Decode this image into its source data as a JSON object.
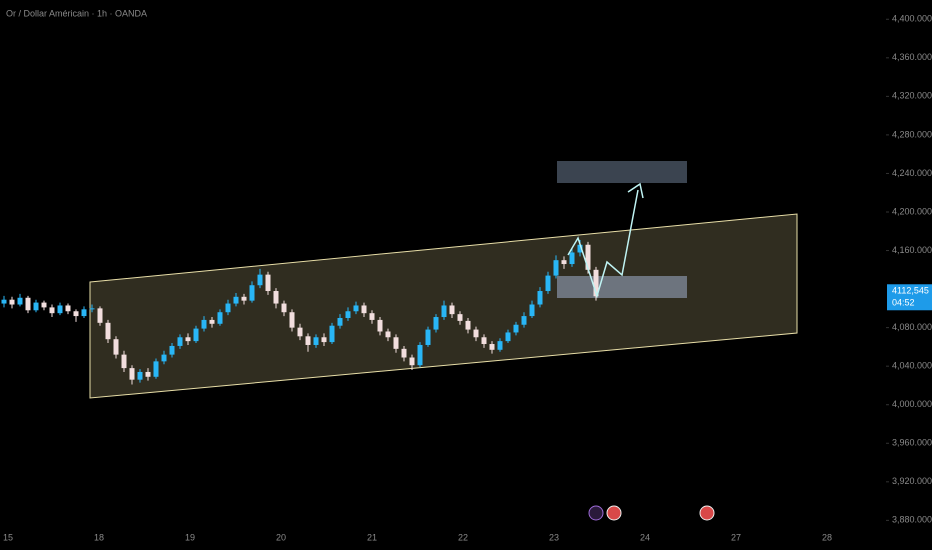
{
  "chart_data": {
    "type": "candlestick",
    "title": "Or / Dollar Américain · 1h · OANDA",
    "bull_color": "#29b6f6",
    "bear_color": "#f2dede",
    "open": [
      4105,
      4109,
      4104,
      4111,
      4098,
      4106,
      4101,
      4095,
      4103,
      4097,
      4092,
      4099,
      4100,
      4085,
      4068,
      4052,
      4038,
      4026,
      4034,
      4029,
      4045,
      4052,
      4061,
      4070,
      4066,
      4079,
      4088,
      4084,
      4096,
      4105,
      4112,
      4108,
      4124,
      4135,
      4118,
      4105,
      4096,
      4080,
      4071,
      4062,
      4070,
      4065,
      4082,
      4090,
      4097,
      4103,
      4095,
      4088,
      4076,
      4070,
      4058,
      4049,
      4041,
      4062,
      4078,
      4091,
      4103,
      4094,
      4087,
      4078,
      4070,
      4063,
      4057,
      4066,
      4075,
      4083,
      4092,
      4104,
      4118,
      4134,
      4150,
      4146,
      4158,
      4166,
      4140
    ],
    "high": [
      4113,
      4112,
      4115,
      4113,
      4109,
      4108,
      4104,
      4106,
      4105,
      4099,
      4102,
      4104,
      4102,
      4088,
      4071,
      4056,
      4041,
      4037,
      4038,
      4048,
      4056,
      4064,
      4073,
      4074,
      4082,
      4092,
      4091,
      4099,
      4109,
      4116,
      4115,
      4128,
      4141,
      4138,
      4121,
      4108,
      4099,
      4084,
      4074,
      4073,
      4074,
      4085,
      4094,
      4101,
      4107,
      4106,
      4098,
      4091,
      4079,
      4073,
      4061,
      4052,
      4065,
      4081,
      4094,
      4108,
      4106,
      4097,
      4090,
      4081,
      4073,
      4066,
      4069,
      4078,
      4086,
      4096,
      4108,
      4122,
      4138,
      4155,
      4154,
      4162,
      4171,
      4169,
      4143
    ],
    "low": [
      4101,
      4100,
      4102,
      4095,
      4096,
      4098,
      4091,
      4093,
      4094,
      4086,
      4090,
      4096,
      4082,
      4064,
      4048,
      4034,
      4021,
      4023,
      4025,
      4027,
      4042,
      4049,
      4058,
      4062,
      4064,
      4076,
      4080,
      4082,
      4093,
      4102,
      4104,
      4106,
      4121,
      4114,
      4100,
      4092,
      4076,
      4067,
      4055,
      4059,
      4061,
      4063,
      4079,
      4087,
      4094,
      4091,
      4084,
      4072,
      4066,
      4054,
      4045,
      4036,
      4039,
      4060,
      4075,
      4088,
      4090,
      4083,
      4074,
      4066,
      4059,
      4053,
      4055,
      4064,
      4072,
      4080,
      4090,
      4101,
      4115,
      4131,
      4141,
      4143,
      4154,
      4136,
      4108
    ],
    "close": [
      4109,
      4104,
      4111,
      4098,
      4106,
      4101,
      4095,
      4103,
      4097,
      4092,
      4099,
      4100,
      4085,
      4068,
      4052,
      4038,
      4026,
      4034,
      4029,
      4045,
      4052,
      4061,
      4070,
      4066,
      4079,
      4088,
      4084,
      4096,
      4105,
      4112,
      4108,
      4124,
      4135,
      4118,
      4105,
      4096,
      4080,
      4071,
      4062,
      4070,
      4065,
      4082,
      4090,
      4097,
      4103,
      4095,
      4088,
      4076,
      4070,
      4058,
      4049,
      4041,
      4062,
      4078,
      4091,
      4103,
      4094,
      4087,
      4078,
      4070,
      4063,
      4057,
      4066,
      4075,
      4083,
      4092,
      4104,
      4118,
      4134,
      4150,
      4146,
      4158,
      4166,
      4140,
      4112.545
    ],
    "ylim": [
      3870,
      4420
    ],
    "yticks": [
      {
        "value": 4400,
        "label": "4,400.000"
      },
      {
        "value": 4360,
        "label": "4,360.000"
      },
      {
        "value": 4320,
        "label": "4,320.000"
      },
      {
        "value": 4280,
        "label": "4,280.000"
      },
      {
        "value": 4240,
        "label": "4,240.000"
      },
      {
        "value": 4200,
        "label": "4,200.000"
      },
      {
        "value": 4160,
        "label": "4,160.000"
      },
      {
        "value": 4080,
        "label": "4,080.000"
      },
      {
        "value": 4040,
        "label": "4,040.000"
      },
      {
        "value": 4000,
        "label": "4,000.000"
      },
      {
        "value": 3960,
        "label": "3,960.000"
      },
      {
        "value": 3920,
        "label": "3,920.000"
      },
      {
        "value": 3880,
        "label": "3,880.000"
      }
    ],
    "x_axis_labels": [
      "15",
      "18",
      "19",
      "20",
      "21",
      "22",
      "23",
      "24",
      "27",
      "28"
    ],
    "price_tag": {
      "value": 4112.545,
      "label": "4112,545"
    },
    "countdown": "04:52"
  }
}
